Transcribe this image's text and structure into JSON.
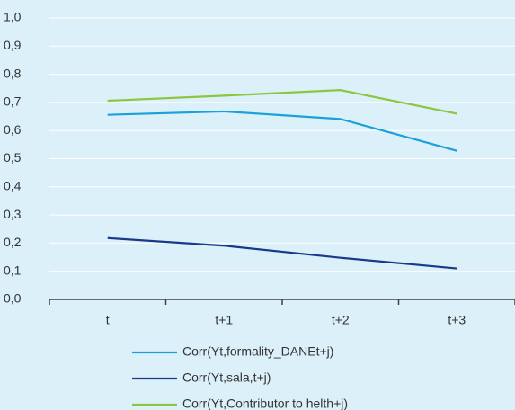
{
  "chart_data": {
    "type": "line",
    "categories": [
      "t",
      "t+1",
      "t+2",
      "t+3"
    ],
    "series": [
      {
        "name": "Corr(Yt,formality_DANEt+j)",
        "color": "#1aa0db",
        "values": [
          0.656,
          0.668,
          0.641,
          0.528
        ]
      },
      {
        "name": "Corr(Yt,sala,t+j)",
        "color": "#173a8c",
        "values": [
          0.218,
          0.191,
          0.148,
          0.11
        ]
      },
      {
        "name": "Corr(Yt,Contributor to helth+j)",
        "color": "#8cc63f",
        "values": [
          0.706,
          0.724,
          0.744,
          0.66
        ]
      }
    ],
    "ylim": [
      0,
      1
    ],
    "yticks": [
      {
        "value": 0,
        "label": "0,0"
      },
      {
        "value": 0.1,
        "label": "0,1"
      },
      {
        "value": 0.2,
        "label": "0,2"
      },
      {
        "value": 0.3,
        "label": "0,3"
      },
      {
        "value": 0.4,
        "label": "0,4"
      },
      {
        "value": 0.5,
        "label": "0,5"
      },
      {
        "value": 0.6,
        "label": "0,6"
      },
      {
        "value": 0.7,
        "label": "0,7"
      },
      {
        "value": 0.8,
        "label": "0,8"
      },
      {
        "value": 0.9,
        "label": "0,9"
      },
      {
        "value": 1,
        "label": "1,0"
      }
    ],
    "grid": true
  }
}
